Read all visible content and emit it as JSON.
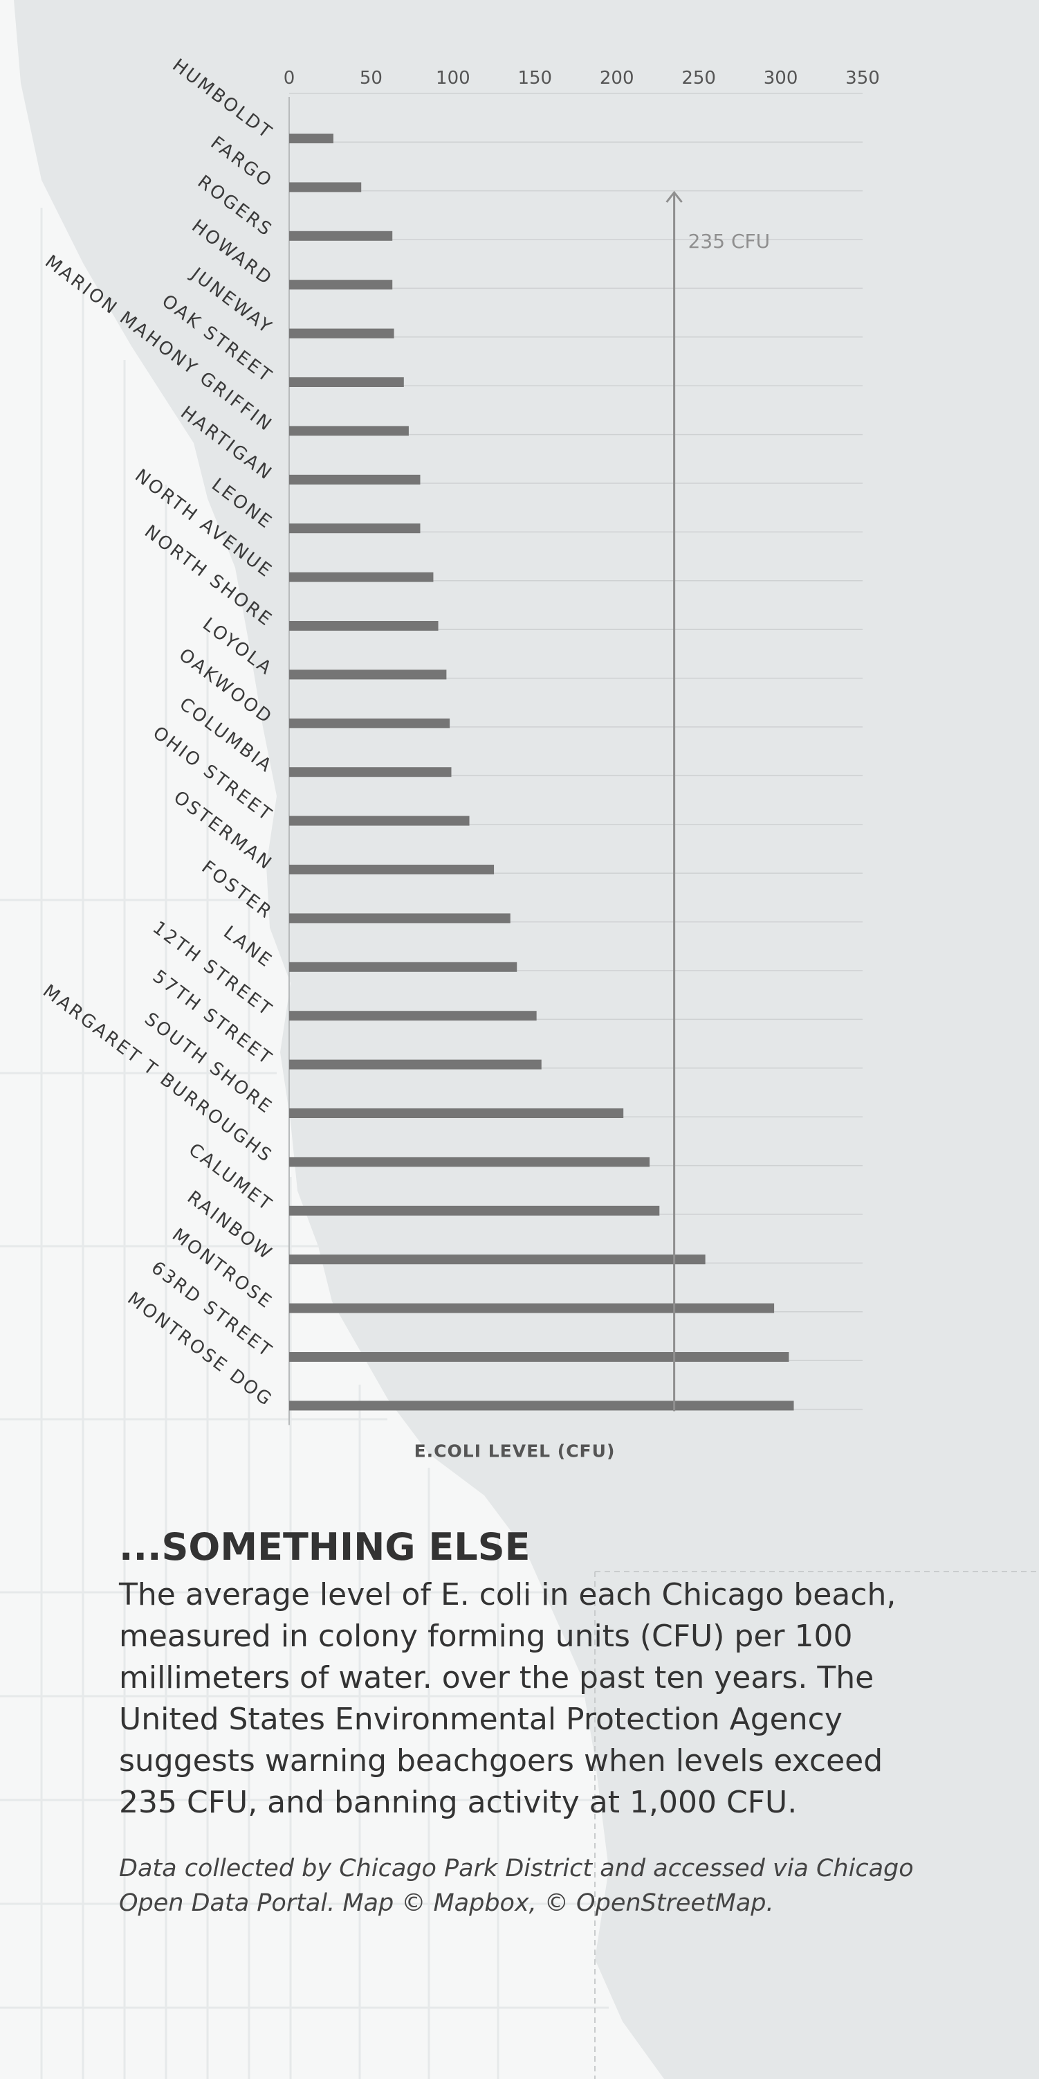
{
  "chart_data": {
    "type": "bar",
    "orientation": "horizontal",
    "categories": [
      "HUMBOLDT",
      "FARGO",
      "ROGERS",
      "HOWARD",
      "JUNEWAY",
      "OAK STREET",
      "MARION MAHONY GRIFFIN",
      "HARTIGAN",
      "LEONE",
      "NORTH AVENUE",
      "NORTH SHORE",
      "LOYOLA",
      "OAKWOOD",
      "COLUMBIA",
      "OHIO STREET",
      "OSTERMAN",
      "FOSTER",
      "LANE",
      "12TH STREET",
      "57TH STREET",
      "SOUTH SHORE",
      "MARGARET T BURROUGHS",
      "CALUMET",
      "RAINBOW",
      "MONTROSE",
      "63RD STREET",
      "MONTROSE DOG"
    ],
    "values": [
      27,
      44,
      63,
      63,
      64,
      70,
      73,
      80,
      80,
      88,
      91,
      96,
      98,
      99,
      110,
      125,
      135,
      139,
      151,
      154,
      204,
      220,
      226,
      254,
      296,
      305,
      308
    ],
    "xlim": [
      0,
      350
    ],
    "x_ticks": [
      "0",
      "50",
      "100",
      "150",
      "200",
      "250",
      "300",
      "350"
    ],
    "xlabel": "E.COLI LEVEL (CFU)",
    "ylabel": "",
    "grid": true,
    "bar_color": "#757575",
    "annotation": {
      "value": 235,
      "label": "235 CFU"
    }
  },
  "headline": "...SOMETHING ELSE",
  "description": "The average level of E. coli in each Chicago beach, measured in colony forming units (CFU) per 100 millimeters of water. over the past ten years. The United States Environmental Protection Agency suggests warning beachgoers when levels exceed 235 CFU, and banning activity at 1,000 CFU.",
  "credit": "Data collected by Chicago Park District and accessed via Chicago Open Data Portal. Map © Mapbox, © OpenStreetMap.",
  "colors": {
    "water": "#e4e7e8",
    "land": "#f6f7f7",
    "bar": "#757575",
    "annotation": "#8f8f8f"
  }
}
